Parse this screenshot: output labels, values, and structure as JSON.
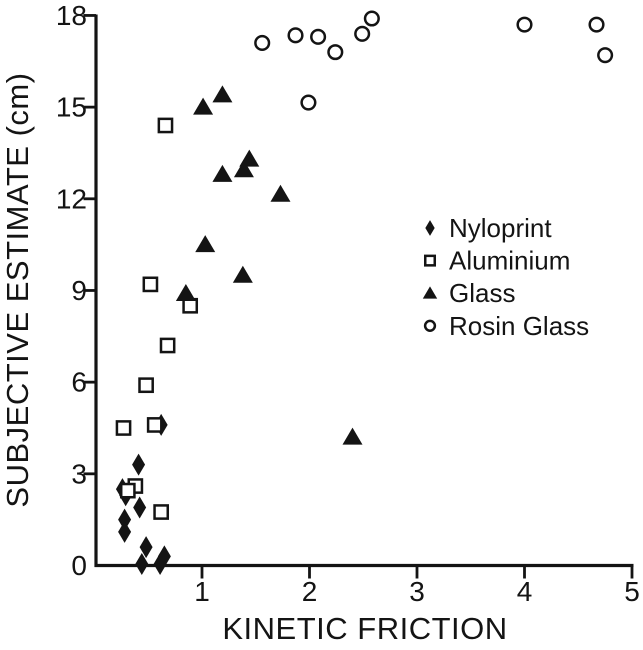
{
  "figure": {
    "background": "#ffffff",
    "ink_color": "#141414"
  },
  "chart_data": {
    "type": "scatter",
    "title": "",
    "xlabel": "KINETIC FRICTION",
    "ylabel": "SUBJECTIVE ESTIMATE (cm)",
    "xlim": [
      0,
      5
    ],
    "ylim": [
      0,
      18
    ],
    "x_ticks": [
      "1",
      "2",
      "3",
      "4",
      "5"
    ],
    "y_ticks": [
      "0",
      "3",
      "6",
      "9",
      "12",
      "15",
      "18"
    ],
    "grid": false,
    "legend_position": "center-right",
    "series": [
      {
        "name": "Nyloprint",
        "marker": "filled-diamond",
        "points": [
          [
            0.62,
            4.6
          ],
          [
            0.41,
            3.3
          ],
          [
            0.26,
            2.5
          ],
          [
            0.29,
            2.3
          ],
          [
            0.42,
            1.9
          ],
          [
            0.28,
            1.5
          ],
          [
            0.28,
            1.1
          ],
          [
            0.48,
            0.6
          ],
          [
            0.44,
            0.05
          ],
          [
            0.61,
            0.05
          ],
          [
            0.65,
            0.3
          ]
        ]
      },
      {
        "name": "Aluminium",
        "marker": "open-square",
        "points": [
          [
            0.66,
            14.4
          ],
          [
            0.52,
            9.2
          ],
          [
            0.89,
            8.5
          ],
          [
            0.68,
            7.2
          ],
          [
            0.48,
            5.9
          ],
          [
            0.27,
            4.5
          ],
          [
            0.56,
            4.6
          ],
          [
            0.38,
            2.6
          ],
          [
            0.31,
            2.45
          ],
          [
            0.62,
            1.75
          ]
        ]
      },
      {
        "name": "Glass",
        "marker": "filled-triangle",
        "points": [
          [
            1.19,
            15.4
          ],
          [
            1.01,
            15.0
          ],
          [
            1.44,
            13.3
          ],
          [
            1.39,
            12.95
          ],
          [
            1.19,
            12.8
          ],
          [
            1.73,
            12.15
          ],
          [
            1.03,
            10.5
          ],
          [
            1.38,
            9.5
          ],
          [
            0.85,
            8.9
          ],
          [
            2.4,
            4.2
          ]
        ]
      },
      {
        "name": "Rosin Glass",
        "marker": "open-circle",
        "points": [
          [
            1.56,
            17.1
          ],
          [
            1.87,
            17.35
          ],
          [
            2.08,
            17.3
          ],
          [
            2.24,
            16.8
          ],
          [
            2.49,
            17.4
          ],
          [
            2.58,
            17.9
          ],
          [
            1.99,
            15.15
          ],
          [
            4.0,
            17.7
          ],
          [
            4.67,
            17.7
          ],
          [
            4.75,
            16.7
          ]
        ]
      }
    ]
  }
}
